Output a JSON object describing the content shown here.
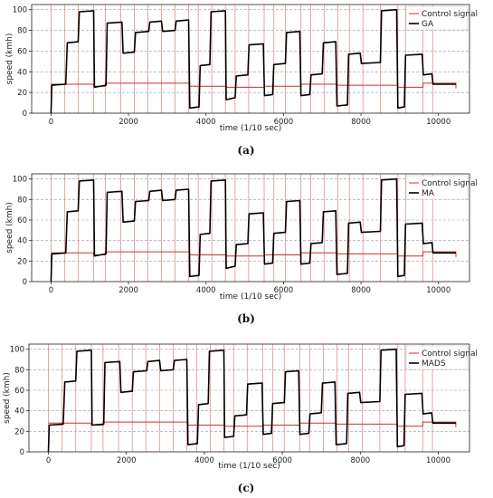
{
  "chart_data": [
    {
      "type": "line",
      "caption": "(a)",
      "xlabel": "time (1/10 sec)",
      "ylabel": "speed (kmh)",
      "xlim": [
        -500,
        10800
      ],
      "ylim": [
        0,
        105
      ],
      "xticks": [
        0,
        2000,
        4000,
        6000,
        8000,
        10000
      ],
      "yticks": [
        0,
        20,
        40,
        60,
        80,
        100
      ],
      "grid": "horizontal dashed",
      "legend_position": "top-right",
      "series": [
        {
          "name": "Control signal",
          "color": "#d9534f"
        },
        {
          "name": "GA",
          "color": "#000000"
        }
      ],
      "speed_profile": [
        [
          0,
          0
        ],
        [
          20,
          27
        ],
        [
          380,
          28
        ],
        [
          420,
          68
        ],
        [
          700,
          69
        ],
        [
          730,
          98
        ],
        [
          1100,
          99
        ],
        [
          1120,
          25
        ],
        [
          1420,
          27
        ],
        [
          1450,
          87
        ],
        [
          1830,
          88
        ],
        [
          1860,
          58
        ],
        [
          2150,
          59
        ],
        [
          2180,
          78
        ],
        [
          2520,
          79
        ],
        [
          2550,
          88
        ],
        [
          2850,
          89
        ],
        [
          2880,
          79
        ],
        [
          3200,
          80
        ],
        [
          3230,
          89
        ],
        [
          3550,
          90
        ],
        [
          3580,
          5
        ],
        [
          3820,
          6
        ],
        [
          3850,
          46
        ],
        [
          4100,
          47
        ],
        [
          4130,
          98
        ],
        [
          4500,
          99
        ],
        [
          4520,
          13
        ],
        [
          4750,
          15
        ],
        [
          4780,
          36
        ],
        [
          5080,
          37
        ],
        [
          5110,
          66
        ],
        [
          5480,
          67
        ],
        [
          5510,
          17
        ],
        [
          5720,
          18
        ],
        [
          5750,
          47
        ],
        [
          6050,
          48
        ],
        [
          6080,
          78
        ],
        [
          6420,
          79
        ],
        [
          6450,
          17
        ],
        [
          6680,
          18
        ],
        [
          6710,
          37
        ],
        [
          7000,
          38
        ],
        [
          7030,
          68
        ],
        [
          7350,
          69
        ],
        [
          7380,
          7
        ],
        [
          7650,
          8
        ],
        [
          7680,
          57
        ],
        [
          7980,
          58
        ],
        [
          8010,
          48
        ],
        [
          8500,
          49
        ],
        [
          8530,
          99
        ],
        [
          8920,
          100
        ],
        [
          8950,
          5
        ],
        [
          9120,
          6
        ],
        [
          9150,
          56
        ],
        [
          9580,
          57
        ],
        [
          9610,
          37
        ],
        [
          9830,
          38
        ],
        [
          9860,
          28
        ],
        [
          10450,
          28
        ]
      ],
      "control_levels": [
        [
          0,
          28
        ],
        [
          1100,
          26
        ],
        [
          1400,
          29
        ],
        [
          3580,
          26
        ],
        [
          4520,
          25
        ],
        [
          5500,
          26
        ],
        [
          6450,
          28
        ],
        [
          7380,
          27
        ],
        [
          8950,
          25
        ],
        [
          9600,
          29
        ],
        [
          10450,
          24
        ]
      ],
      "control_spikes": [
        0,
        350,
        700,
        1100,
        1400,
        1800,
        2150,
        2500,
        2850,
        3200,
        3550,
        3800,
        4150,
        4500,
        4750,
        5100,
        5500,
        5750,
        6050,
        6450,
        6700,
        7050,
        7400,
        7700,
        8050,
        8500,
        8950,
        9150,
        9600,
        9850
      ]
    },
    {
      "type": "line",
      "caption": "(b)",
      "xlabel": "time (1/10 sec)",
      "ylabel": "speed (kmh)",
      "xlim": [
        -500,
        10800
      ],
      "ylim": [
        0,
        105
      ],
      "xticks": [
        0,
        2000,
        4000,
        6000,
        8000,
        10000
      ],
      "yticks": [
        0,
        20,
        40,
        60,
        80,
        100
      ],
      "grid": "horizontal dashed",
      "legend_position": "top-right",
      "series": [
        {
          "name": "Control signal",
          "color": "#d9534f"
        },
        {
          "name": "MA",
          "color": "#000000"
        }
      ],
      "speed_profile": [
        [
          0,
          0
        ],
        [
          20,
          27
        ],
        [
          380,
          28
        ],
        [
          420,
          68
        ],
        [
          700,
          69
        ],
        [
          730,
          98
        ],
        [
          1100,
          99
        ],
        [
          1120,
          25
        ],
        [
          1420,
          27
        ],
        [
          1450,
          87
        ],
        [
          1830,
          88
        ],
        [
          1860,
          58
        ],
        [
          2150,
          59
        ],
        [
          2180,
          78
        ],
        [
          2520,
          79
        ],
        [
          2550,
          88
        ],
        [
          2850,
          89
        ],
        [
          2880,
          79
        ],
        [
          3200,
          80
        ],
        [
          3230,
          89
        ],
        [
          3550,
          90
        ],
        [
          3580,
          5
        ],
        [
          3820,
          6
        ],
        [
          3850,
          46
        ],
        [
          4100,
          47
        ],
        [
          4130,
          98
        ],
        [
          4500,
          99
        ],
        [
          4520,
          13
        ],
        [
          4750,
          15
        ],
        [
          4780,
          36
        ],
        [
          5080,
          37
        ],
        [
          5110,
          66
        ],
        [
          5480,
          67
        ],
        [
          5510,
          17
        ],
        [
          5720,
          18
        ],
        [
          5750,
          47
        ],
        [
          6050,
          48
        ],
        [
          6080,
          78
        ],
        [
          6420,
          79
        ],
        [
          6450,
          17
        ],
        [
          6680,
          18
        ],
        [
          6710,
          37
        ],
        [
          7000,
          38
        ],
        [
          7030,
          68
        ],
        [
          7350,
          69
        ],
        [
          7380,
          7
        ],
        [
          7650,
          8
        ],
        [
          7680,
          57
        ],
        [
          7980,
          58
        ],
        [
          8010,
          48
        ],
        [
          8500,
          49
        ],
        [
          8530,
          99
        ],
        [
          8920,
          100
        ],
        [
          8950,
          5
        ],
        [
          9120,
          6
        ],
        [
          9150,
          56
        ],
        [
          9580,
          57
        ],
        [
          9610,
          37
        ],
        [
          9830,
          38
        ],
        [
          9860,
          28
        ],
        [
          10450,
          28
        ]
      ],
      "control_levels": [
        [
          0,
          28
        ],
        [
          1100,
          26
        ],
        [
          1400,
          29
        ],
        [
          3580,
          26
        ],
        [
          4520,
          25
        ],
        [
          5500,
          26
        ],
        [
          6450,
          28
        ],
        [
          7380,
          27
        ],
        [
          8950,
          25
        ],
        [
          9600,
          29
        ],
        [
          10450,
          24
        ]
      ],
      "control_spikes": [
        0,
        350,
        700,
        1100,
        1400,
        1800,
        2150,
        2500,
        2850,
        3200,
        3550,
        3800,
        4150,
        4500,
        4750,
        5100,
        5500,
        5750,
        6050,
        6450,
        6700,
        7050,
        7400,
        7700,
        8050,
        8500,
        8950,
        9150,
        9600,
        9850
      ]
    },
    {
      "type": "line",
      "caption": "(c)",
      "xlabel": "time (1/10 sec)",
      "ylabel": "speed (kmh)",
      "xlim": [
        -500,
        10800
      ],
      "ylim": [
        0,
        105
      ],
      "xticks": [
        0,
        2000,
        4000,
        6000,
        8000,
        10000
      ],
      "yticks": [
        0,
        20,
        40,
        60,
        80,
        100
      ],
      "grid": "horizontal dashed",
      "legend_position": "top-right",
      "series": [
        {
          "name": "Control signal",
          "color": "#d9534f"
        },
        {
          "name": "MADS",
          "color": "#000000"
        }
      ],
      "speed_profile": [
        [
          0,
          0
        ],
        [
          20,
          26
        ],
        [
          380,
          27
        ],
        [
          420,
          68
        ],
        [
          700,
          69
        ],
        [
          730,
          98
        ],
        [
          1100,
          99
        ],
        [
          1120,
          26
        ],
        [
          1420,
          27
        ],
        [
          1450,
          87
        ],
        [
          1830,
          88
        ],
        [
          1860,
          58
        ],
        [
          2150,
          59
        ],
        [
          2180,
          78
        ],
        [
          2520,
          79
        ],
        [
          2550,
          88
        ],
        [
          2850,
          89
        ],
        [
          2880,
          79
        ],
        [
          3200,
          80
        ],
        [
          3230,
          89
        ],
        [
          3550,
          90
        ],
        [
          3580,
          7
        ],
        [
          3820,
          8
        ],
        [
          3850,
          46
        ],
        [
          4100,
          47
        ],
        [
          4130,
          98
        ],
        [
          4500,
          99
        ],
        [
          4520,
          14
        ],
        [
          4750,
          15
        ],
        [
          4780,
          35
        ],
        [
          5080,
          36
        ],
        [
          5110,
          66
        ],
        [
          5480,
          67
        ],
        [
          5510,
          17
        ],
        [
          5720,
          18
        ],
        [
          5750,
          47
        ],
        [
          6050,
          48
        ],
        [
          6080,
          78
        ],
        [
          6420,
          79
        ],
        [
          6450,
          17
        ],
        [
          6680,
          18
        ],
        [
          6710,
          37
        ],
        [
          7000,
          38
        ],
        [
          7030,
          67
        ],
        [
          7350,
          68
        ],
        [
          7380,
          7
        ],
        [
          7650,
          8
        ],
        [
          7680,
          57
        ],
        [
          7980,
          58
        ],
        [
          8010,
          48
        ],
        [
          8500,
          49
        ],
        [
          8530,
          99
        ],
        [
          8920,
          100
        ],
        [
          8950,
          5
        ],
        [
          9120,
          6
        ],
        [
          9150,
          56
        ],
        [
          9580,
          57
        ],
        [
          9610,
          37
        ],
        [
          9830,
          38
        ],
        [
          9860,
          28
        ],
        [
          10450,
          28
        ]
      ],
      "control_levels": [
        [
          0,
          28
        ],
        [
          1100,
          26
        ],
        [
          1400,
          29
        ],
        [
          3580,
          26
        ],
        [
          4520,
          25
        ],
        [
          5500,
          26
        ],
        [
          6450,
          28
        ],
        [
          7380,
          27
        ],
        [
          8950,
          25
        ],
        [
          9600,
          29
        ],
        [
          10450,
          24
        ]
      ],
      "control_spikes": [
        0,
        350,
        700,
        1100,
        1400,
        1800,
        2150,
        2500,
        2850,
        3200,
        3550,
        3800,
        4150,
        4500,
        4750,
        5100,
        5500,
        5750,
        6050,
        6450,
        6700,
        7050,
        7400,
        7700,
        8050,
        8500,
        8950,
        9150,
        9600,
        9850
      ]
    }
  ]
}
